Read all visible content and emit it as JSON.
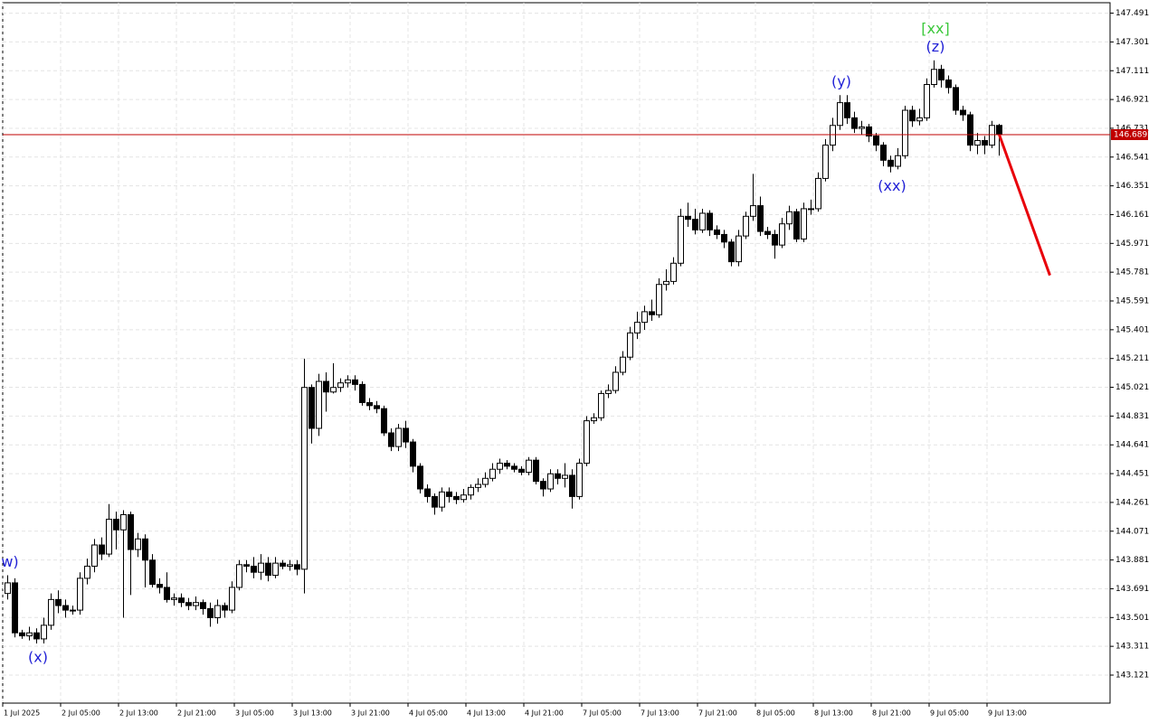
{
  "chart_data": {
    "type": "candlestick",
    "ylim": [
      142.936,
      147.56
    ],
    "yticks": [
      147.491,
      147.301,
      147.111,
      146.921,
      146.731,
      146.541,
      146.351,
      146.161,
      145.971,
      145.781,
      145.591,
      145.401,
      145.211,
      145.021,
      144.831,
      144.641,
      144.451,
      144.261,
      144.071,
      143.881,
      143.691,
      143.501,
      143.311,
      143.121
    ],
    "grid": true,
    "xticks": [
      "1 Jul 2025",
      "2 Jul 05:00",
      "2 Jul 13:00",
      "2 Jul 21:00",
      "3 Jul 05:00",
      "3 Jul 13:00",
      "3 Jul 21:00",
      "4 Jul 05:00",
      "4 Jul 13:00",
      "4 Jul 21:00",
      "7 Jul 05:00",
      "7 Jul 13:00",
      "7 Jul 21:00",
      "8 Jul 05:00",
      "8 Jul 13:00",
      "8 Jul 21:00",
      "9 Jul 05:00",
      "9 Jul 13:00"
    ],
    "up_color": "#ffffff",
    "down_color": "#000000",
    "open": [
      143.66,
      143.73,
      143.4,
      143.38,
      143.4,
      143.36,
      143.45,
      143.62,
      143.58,
      143.55,
      143.55,
      143.76,
      143.84,
      143.98,
      143.92,
      144.15,
      144.08,
      144.18,
      143.95,
      144.02,
      143.88,
      143.72,
      143.7,
      143.62,
      143.63,
      143.6,
      143.58,
      143.6,
      143.56,
      143.5,
      143.58,
      143.55,
      143.7,
      143.85,
      143.84,
      143.8,
      143.86,
      143.78,
      143.86,
      143.84,
      143.85,
      143.82,
      145.02,
      144.75,
      145.06,
      144.99,
      145.02,
      145.05,
      145.07,
      145.04,
      144.92,
      144.9,
      144.88,
      144.72,
      144.63,
      144.75,
      144.66,
      144.5,
      144.35,
      144.3,
      144.23,
      144.33,
      144.3,
      144.28,
      144.31,
      144.36,
      144.38,
      144.42,
      144.48,
      144.52,
      144.5,
      144.48,
      144.46,
      144.54,
      144.4,
      144.35,
      144.45,
      144.42,
      144.44,
      144.3,
      144.52,
      144.8,
      144.82,
      144.98,
      145.0,
      145.12,
      145.22,
      145.38,
      145.45,
      145.52,
      145.5,
      145.7,
      145.72,
      145.84,
      146.15,
      146.13,
      146.06,
      146.17,
      146.06,
      146.03,
      145.98,
      145.85,
      146.02,
      146.15,
      146.22,
      146.05,
      146.03,
      145.96,
      146.1,
      146.18,
      146.0,
      146.2,
      146.2,
      146.4,
      146.62,
      146.75,
      146.9,
      146.8,
      146.73,
      146.74,
      146.68,
      146.62,
      146.52,
      146.48,
      146.55,
      146.85,
      146.78,
      146.8,
      147.02,
      147.12,
      147.05,
      147.0,
      146.85,
      146.82,
      146.62,
      146.65,
      146.62,
      146.75
    ],
    "high": [
      143.78,
      143.76,
      143.42,
      143.44,
      143.43,
      143.5,
      143.66,
      143.68,
      143.62,
      143.58,
      143.8,
      143.89,
      144.02,
      144.03,
      144.25,
      144.2,
      144.21,
      144.2,
      144.06,
      144.05,
      143.92,
      143.76,
      143.8,
      143.66,
      143.66,
      143.63,
      143.64,
      143.62,
      143.6,
      143.62,
      143.6,
      143.74,
      143.88,
      143.88,
      143.9,
      143.92,
      143.9,
      143.9,
      143.88,
      143.88,
      143.88,
      145.21,
      145.04,
      145.11,
      145.12,
      145.18,
      145.08,
      145.1,
      145.1,
      145.06,
      144.95,
      144.93,
      144.9,
      144.75,
      144.78,
      144.8,
      144.68,
      144.52,
      144.38,
      144.32,
      144.36,
      144.36,
      144.33,
      144.35,
      144.38,
      144.42,
      144.46,
      144.52,
      144.55,
      144.54,
      144.52,
      144.5,
      144.56,
      144.56,
      144.42,
      144.48,
      144.48,
      144.52,
      144.48,
      144.55,
      144.83,
      144.85,
      145.0,
      145.04,
      145.16,
      145.26,
      145.42,
      145.52,
      145.56,
      145.6,
      145.74,
      145.8,
      145.88,
      146.2,
      146.24,
      146.2,
      146.2,
      146.19,
      146.09,
      146.06,
      146.0,
      146.06,
      146.18,
      146.43,
      146.28,
      146.08,
      146.06,
      146.14,
      146.22,
      146.2,
      146.24,
      146.26,
      146.44,
      146.66,
      146.8,
      146.95,
      146.95,
      146.84,
      146.78,
      146.76,
      146.7,
      146.64,
      146.55,
      146.6,
      146.88,
      146.88,
      146.86,
      147.06,
      147.18,
      147.15,
      147.08,
      147.02,
      146.88,
      146.84,
      146.7,
      146.68,
      146.78,
      146.76
    ],
    "low": [
      143.62,
      143.37,
      143.36,
      143.35,
      143.33,
      143.33,
      143.42,
      143.53,
      143.5,
      143.52,
      143.52,
      143.72,
      143.8,
      143.88,
      143.9,
      143.95,
      143.5,
      143.65,
      143.9,
      143.7,
      143.7,
      143.66,
      143.6,
      143.58,
      143.57,
      143.55,
      143.55,
      143.52,
      143.44,
      143.46,
      143.5,
      143.53,
      143.68,
      143.8,
      143.76,
      143.75,
      143.74,
      143.76,
      143.82,
      143.81,
      143.78,
      143.66,
      144.65,
      144.7,
      144.86,
      144.98,
      144.99,
      145.02,
      145.0,
      144.9,
      144.87,
      144.85,
      144.7,
      144.6,
      144.6,
      144.62,
      144.46,
      144.32,
      144.26,
      144.18,
      144.2,
      144.26,
      144.25,
      144.26,
      144.28,
      144.33,
      144.36,
      144.4,
      144.45,
      144.48,
      144.46,
      144.44,
      144.44,
      144.38,
      144.3,
      144.33,
      144.38,
      144.36,
      144.22,
      144.28,
      144.5,
      144.78,
      144.8,
      144.95,
      144.98,
      145.1,
      145.2,
      145.34,
      145.4,
      145.46,
      145.48,
      145.66,
      145.7,
      145.82,
      146.08,
      146.03,
      146.04,
      146.02,
      146.0,
      145.94,
      145.82,
      145.82,
      146.0,
      146.12,
      146.02,
      146.0,
      145.87,
      145.94,
      146.06,
      145.98,
      145.98,
      146.16,
      146.18,
      146.38,
      146.58,
      146.72,
      146.76,
      146.7,
      146.69,
      146.64,
      146.58,
      146.48,
      146.44,
      146.46,
      146.53,
      146.74,
      146.75,
      146.78,
      147.0,
      147.0,
      146.96,
      146.82,
      146.78,
      146.58,
      146.56,
      146.56,
      146.6,
      146.55
    ],
    "close": [
      143.73,
      143.4,
      143.38,
      143.4,
      143.36,
      143.45,
      143.62,
      143.58,
      143.55,
      143.55,
      143.76,
      143.84,
      143.98,
      143.92,
      144.15,
      144.08,
      144.18,
      143.95,
      144.02,
      143.88,
      143.72,
      143.7,
      143.62,
      143.63,
      143.6,
      143.58,
      143.6,
      143.56,
      143.5,
      143.58,
      143.55,
      143.7,
      143.85,
      143.84,
      143.8,
      143.86,
      143.78,
      143.86,
      143.84,
      143.85,
      143.82,
      145.02,
      144.75,
      145.06,
      144.99,
      145.02,
      145.05,
      145.07,
      145.04,
      144.92,
      144.9,
      144.88,
      144.72,
      144.63,
      144.75,
      144.66,
      144.5,
      144.35,
      144.3,
      144.23,
      144.33,
      144.3,
      144.28,
      144.31,
      144.36,
      144.38,
      144.42,
      144.48,
      144.52,
      144.5,
      144.48,
      144.46,
      144.54,
      144.4,
      144.35,
      144.45,
      144.42,
      144.44,
      144.3,
      144.52,
      144.8,
      144.82,
      144.98,
      145.0,
      145.12,
      145.22,
      145.38,
      145.45,
      145.52,
      145.5,
      145.7,
      145.72,
      145.84,
      146.15,
      146.13,
      146.06,
      146.17,
      146.06,
      146.03,
      145.98,
      145.85,
      146.02,
      146.15,
      146.22,
      146.05,
      146.03,
      145.96,
      146.1,
      146.18,
      146.0,
      146.2,
      146.2,
      146.4,
      146.62,
      146.75,
      146.9,
      146.8,
      146.73,
      146.74,
      146.68,
      146.62,
      146.52,
      146.48,
      146.55,
      146.85,
      146.78,
      146.8,
      147.02,
      147.12,
      147.05,
      147.0,
      146.85,
      146.82,
      146.62,
      146.65,
      146.62,
      146.75,
      146.689
    ],
    "last_price": 146.689,
    "last_price_color": "#c00000",
    "forecast": {
      "color": "#e8000b",
      "values": [
        146.689,
        145.76
      ]
    },
    "annotations": [
      {
        "text": "w)",
        "color": "#1f1fd6"
      },
      {
        "text": "(x)",
        "color": "#1f1fd6"
      },
      {
        "text": "(y)",
        "color": "#1f1fd6"
      },
      {
        "text": "(xx)",
        "color": "#1f1fd6"
      },
      {
        "text": "(z)",
        "color": "#1f1fd6"
      },
      {
        "text": "[xx]",
        "color": "#3cc83c"
      }
    ]
  }
}
